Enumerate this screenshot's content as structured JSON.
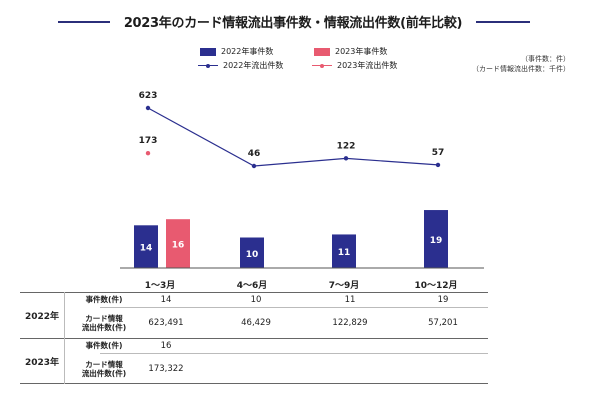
{
  "title": "2023年のカード情報流出事件数・情報流出件数(前年比較)",
  "units_note": [
    "（事件数：件）",
    "（カード情報流出件数：千件）"
  ],
  "legend": [
    {
      "label": "2022年事件数",
      "kind": "bar",
      "color": "#2b2f8f"
    },
    {
      "label": "2023年事件数",
      "kind": "bar",
      "color": "#e85a70"
    },
    {
      "label": "2022年流出件数",
      "kind": "line",
      "color": "#2b2f8f"
    },
    {
      "label": "2023年流出件数",
      "kind": "line",
      "color": "#e85a70"
    }
  ],
  "chart_data": {
    "type": "bar",
    "categories": [
      "1～3月",
      "4～6月",
      "7～9月",
      "10～12月"
    ],
    "series": [
      {
        "name": "2022年事件数",
        "type": "bar",
        "color": "#2b2f8f",
        "values": [
          14,
          10,
          11,
          19
        ]
      },
      {
        "name": "2023年事件数",
        "type": "bar",
        "color": "#e85a70",
        "values": [
          16,
          null,
          null,
          null
        ]
      },
      {
        "name": "2022年流出件数",
        "type": "line",
        "color": "#2b2f8f",
        "values": [
          623,
          46,
          122,
          57
        ]
      },
      {
        "name": "2023年流出件数",
        "type": "line",
        "color": "#e85a70",
        "values": [
          173,
          null,
          null,
          null
        ]
      }
    ],
    "legend_position": "top-left",
    "grid": false
  },
  "table": {
    "headers": [
      "1～3月",
      "4～6月",
      "7～9月",
      "10～12月"
    ],
    "groups": [
      {
        "year": "2022年",
        "rows": [
          {
            "label": [
              "事件数(件)"
            ],
            "values": [
              "14",
              "10",
              "11",
              "19"
            ]
          },
          {
            "label": [
              "カード情報",
              "流出件数(件)"
            ],
            "values": [
              "623,491",
              "46,429",
              "122,829",
              "57,201"
            ]
          }
        ]
      },
      {
        "year": "2023年",
        "rows": [
          {
            "label": [
              "事件数(件)"
            ],
            "values": [
              "16",
              "",
              "",
              ""
            ]
          },
          {
            "label": [
              "カード情報",
              "流出件数(件)"
            ],
            "values": [
              "173,322",
              "",
              "",
              ""
            ]
          }
        ]
      }
    ]
  }
}
